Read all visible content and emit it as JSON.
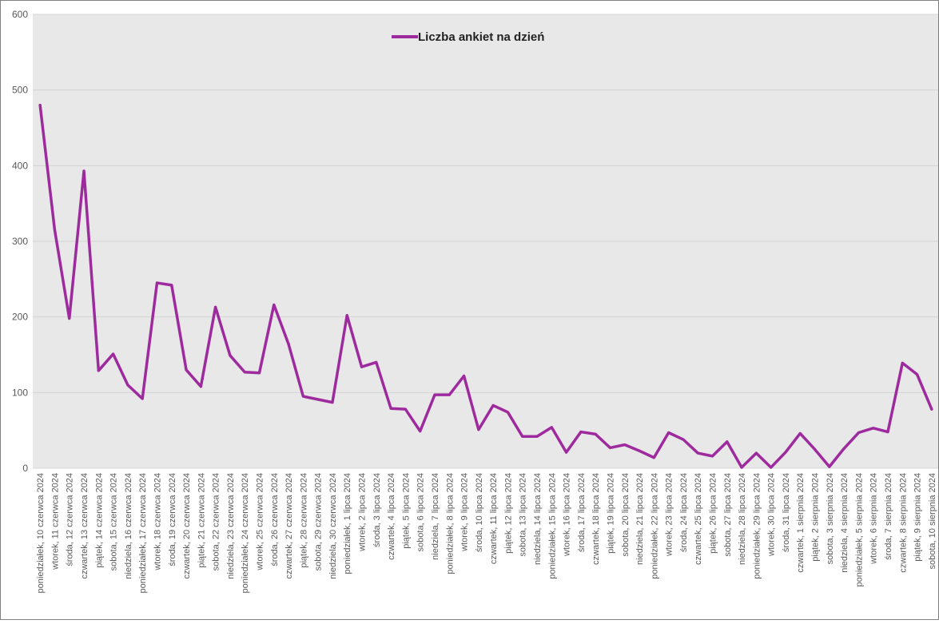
{
  "chart_data": {
    "type": "line",
    "title": "",
    "xlabel": "",
    "ylabel": "",
    "ylim": [
      0,
      600
    ],
    "yticks": [
      0,
      100,
      200,
      300,
      400,
      500,
      600
    ],
    "grid": true,
    "legend_position": "top-center",
    "categories": [
      "poniedziałek, 10 czerwca 2024",
      "wtorek, 11 czerwca 2024",
      "środa, 12 czerwca 2024",
      "czwartek, 13 czerwca 2024",
      "piątek, 14 czerwca 2024",
      "sobota, 15 czerwca 2024",
      "niedziela, 16 czerwca 2024",
      "poniedziałek, 17 czerwca 2024",
      "wtorek, 18 czerwca 2024",
      "środa, 19 czerwca 2024",
      "czwartek, 20 czerwca 2024",
      "piątek, 21 czerwca 2024",
      "sobota, 22 czerwca 2024",
      "niedziela, 23 czerwca 2024",
      "poniedziałek, 24 czerwca 2024",
      "wtorek, 25 czerwca 2024",
      "środa, 26 czerwca 2024",
      "czwartek, 27 czerwca 2024",
      "piątek, 28 czerwca 2024",
      "sobota, 29 czerwca 2024",
      "niedziela, 30 czerwca 2024",
      "poniedziałek, 1 lipca 2024",
      "wtorek, 2 lipca 2024",
      "środa, 3 lipca 2024",
      "czwartek, 4 lipca 2024",
      "piątek, 5 lipca 2024",
      "sobota, 6 lipca 2024",
      "niedziela, 7 lipca 2024",
      "poniedziałek, 8 lipca 2024",
      "wtorek, 9 lipca 2024",
      "środa, 10 lipca 2024",
      "czwartek, 11 lipca 2024",
      "piątek, 12 lipca 2024",
      "sobota, 13 lipca 2024",
      "niedziela, 14 lipca 2024",
      "poniedziałek, 15 lipca 2024",
      "wtorek, 16 lipca 2024",
      "środa, 17 lipca 2024",
      "czwartek, 18 lipca 2024",
      "piątek, 19 lipca 2024",
      "sobota, 20 lipca 2024",
      "niedziela, 21 lipca 2024",
      "poniedziałek, 22 lipca 2024",
      "wtorek, 23 lipca 2024",
      "środa, 24 lipca 2024",
      "czwartek, 25 lipca 2024",
      "piątek, 26 lipca 2024",
      "sobota, 27 lipca 2024",
      "niedziela, 28 lipca 2024",
      "poniedziałek, 29 lipca 2024",
      "wtorek, 30 lipca 2024",
      "środa, 31 lipca 2024",
      "czwartek, 1 sierpnia 2024",
      "piątek, 2 sierpnia 2024",
      "sobota, 3 sierpnia 2024",
      "niedziela, 4 sierpnia 2024",
      "poniedziałek, 5 sierpnia 2024",
      "wtorek, 6 sierpnia 2024",
      "środa, 7 sierpnia 2024",
      "czwartek, 8 sierpnia 2024",
      "piątek, 9 sierpnia 2024",
      "sobota, 10 sierpnia 2024"
    ],
    "series": [
      {
        "name": "Liczba ankiet na dzień",
        "color": "#9e2b9e",
        "values": [
          480,
          315,
          198,
          393,
          129,
          151,
          110,
          92,
          245,
          242,
          130,
          108,
          213,
          149,
          127,
          126,
          216,
          164,
          95,
          91,
          87,
          202,
          134,
          140,
          79,
          78,
          49,
          97,
          97,
          122,
          51,
          83,
          74,
          42,
          42,
          54,
          21,
          48,
          45,
          27,
          31,
          23,
          14,
          47,
          38,
          20,
          16,
          35,
          1,
          20,
          1,
          21,
          46,
          25,
          2,
          26,
          47,
          53,
          48,
          139,
          124,
          78
        ]
      }
    ]
  },
  "colors": {
    "plot_background": "#e8e8e8",
    "gridline": "#d4d4d4",
    "series_line": "#9e2b9e",
    "border": "#7f7f7f"
  }
}
